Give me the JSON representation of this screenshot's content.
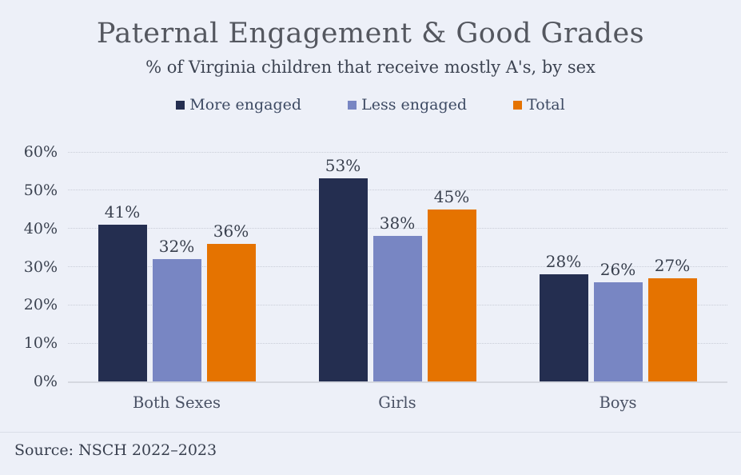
{
  "chart_data": {
    "type": "bar",
    "title": "Paternal Engagement & Good Grades",
    "subtitle": "% of Virginia children that receive mostly A's, by sex",
    "source": "Source: NSCH 2022–2023",
    "categories": [
      "Both Sexes",
      "Girls",
      "Boys"
    ],
    "series": [
      {
        "name": "More engaged",
        "color": "#242e50",
        "values": [
          41,
          53,
          28
        ]
      },
      {
        "name": "Less engaged",
        "color": "#7886c3",
        "values": [
          32,
          38,
          26
        ]
      },
      {
        "name": "Total",
        "color": "#e57300",
        "values": [
          36,
          45,
          27
        ]
      }
    ],
    "value_suffix": "%",
    "ylabel": "",
    "xlabel": "",
    "ylim": [
      0,
      60
    ],
    "yticks": [
      "0%",
      "10%",
      "20%",
      "30%",
      "40%",
      "50%",
      "60%"
    ],
    "grid": true,
    "legend_position": "top",
    "background_color": "#edf0f8"
  }
}
